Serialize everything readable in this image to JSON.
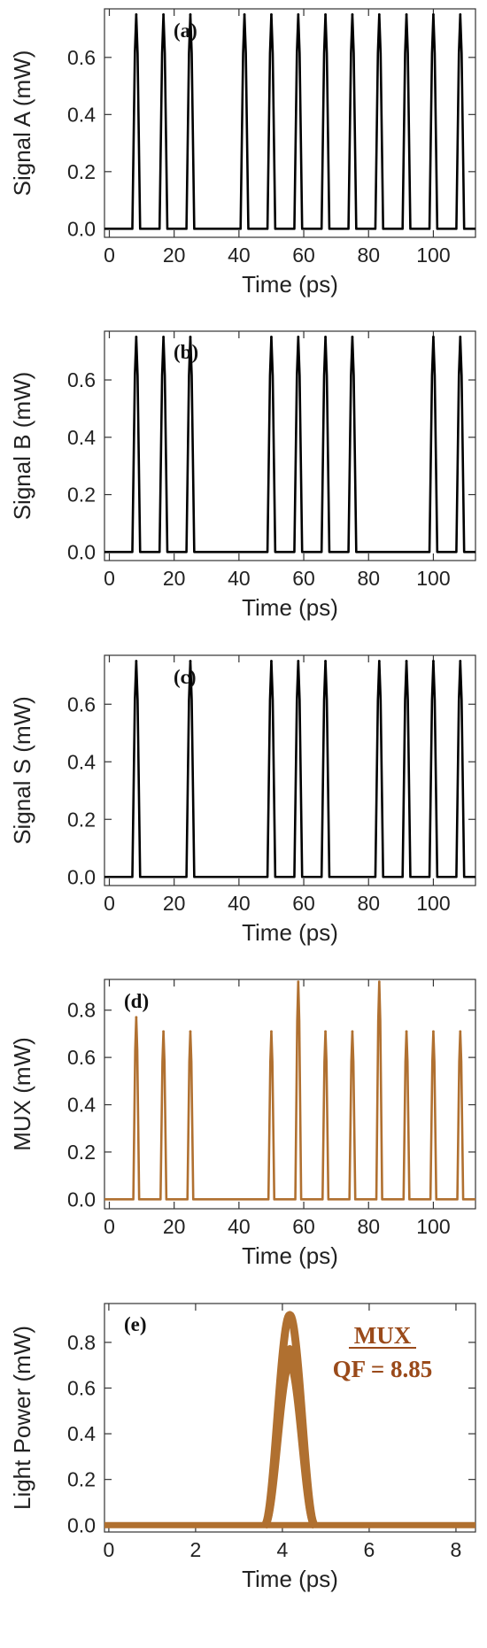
{
  "chart_data": [
    {
      "type": "line",
      "panel_label": "(a)",
      "xlabel": "Time (ps)",
      "ylabel": "Signal  A (mW)",
      "xlim": [
        -1.5,
        113
      ],
      "ylim": [
        -0.03,
        0.77
      ],
      "xticks": [
        0,
        20,
        40,
        60,
        80,
        100
      ],
      "yticks": [
        0.0,
        0.2,
        0.4,
        0.6
      ],
      "ytick_labels": [
        "0.0",
        "0.2",
        "0.4",
        "0.6"
      ],
      "color": "#000000",
      "pulse_halfwidth": 1.2,
      "peaks": [
        {
          "x": 8.3,
          "y": 0.75
        },
        {
          "x": 16.7,
          "y": 0.75
        },
        {
          "x": 25.0,
          "y": 0.75
        },
        {
          "x": 41.7,
          "y": 0.75
        },
        {
          "x": 50.0,
          "y": 0.75
        },
        {
          "x": 58.3,
          "y": 0.75
        },
        {
          "x": 66.7,
          "y": 0.75
        },
        {
          "x": 75.0,
          "y": 0.75
        },
        {
          "x": 83.3,
          "y": 0.75
        },
        {
          "x": 91.7,
          "y": 0.75
        },
        {
          "x": 100.0,
          "y": 0.75
        },
        {
          "x": 108.3,
          "y": 0.75
        }
      ]
    },
    {
      "type": "line",
      "panel_label": "(b)",
      "xlabel": "Time (ps)",
      "ylabel": "Signal  B (mW)",
      "xlim": [
        -1.5,
        113
      ],
      "ylim": [
        -0.03,
        0.77
      ],
      "xticks": [
        0,
        20,
        40,
        60,
        80,
        100
      ],
      "yticks": [
        0.0,
        0.2,
        0.4,
        0.6
      ],
      "ytick_labels": [
        "0.0",
        "0.2",
        "0.4",
        "0.6"
      ],
      "color": "#000000",
      "pulse_halfwidth": 1.2,
      "peaks": [
        {
          "x": 8.3,
          "y": 0.75
        },
        {
          "x": 16.7,
          "y": 0.75
        },
        {
          "x": 25.0,
          "y": 0.75
        },
        {
          "x": 50.0,
          "y": 0.75
        },
        {
          "x": 58.3,
          "y": 0.75
        },
        {
          "x": 66.7,
          "y": 0.75
        },
        {
          "x": 75.0,
          "y": 0.75
        },
        {
          "x": 100.0,
          "y": 0.75
        },
        {
          "x": 108.3,
          "y": 0.75
        }
      ]
    },
    {
      "type": "line",
      "panel_label": "(c)",
      "xlabel": "Time (ps)",
      "ylabel": "Signal  S (mW)",
      "xlim": [
        -1.5,
        113
      ],
      "ylim": [
        -0.03,
        0.77
      ],
      "xticks": [
        0,
        20,
        40,
        60,
        80,
        100
      ],
      "yticks": [
        0.0,
        0.2,
        0.4,
        0.6
      ],
      "ytick_labels": [
        "0.0",
        "0.2",
        "0.4",
        "0.6"
      ],
      "color": "#000000",
      "pulse_halfwidth": 1.2,
      "peaks": [
        {
          "x": 8.3,
          "y": 0.75
        },
        {
          "x": 25.0,
          "y": 0.75
        },
        {
          "x": 50.0,
          "y": 0.75
        },
        {
          "x": 58.3,
          "y": 0.75
        },
        {
          "x": 66.7,
          "y": 0.75
        },
        {
          "x": 83.3,
          "y": 0.75
        },
        {
          "x": 91.7,
          "y": 0.75
        },
        {
          "x": 100.0,
          "y": 0.75
        },
        {
          "x": 108.3,
          "y": 0.75
        }
      ]
    },
    {
      "type": "line",
      "panel_label": "(d)",
      "xlabel": "Time (ps)",
      "ylabel": "MUX (mW)",
      "xlim": [
        -1.5,
        113
      ],
      "ylim": [
        -0.04,
        0.93
      ],
      "xticks": [
        0,
        20,
        40,
        60,
        80,
        100
      ],
      "yticks": [
        0.0,
        0.2,
        0.4,
        0.6,
        0.8
      ],
      "ytick_labels": [
        "0.0",
        "0.2",
        "0.4",
        "0.6",
        "0.8"
      ],
      "color": "#b07030",
      "pulse_halfwidth": 0.9,
      "peaks": [
        {
          "x": 8.3,
          "y": 0.77
        },
        {
          "x": 16.7,
          "y": 0.71
        },
        {
          "x": 25.0,
          "y": 0.71
        },
        {
          "x": 50.0,
          "y": 0.71
        },
        {
          "x": 58.3,
          "y": 0.92
        },
        {
          "x": 66.7,
          "y": 0.71
        },
        {
          "x": 75.0,
          "y": 0.71
        },
        {
          "x": 83.3,
          "y": 0.92
        },
        {
          "x": 91.7,
          "y": 0.71
        },
        {
          "x": 100.0,
          "y": 0.71
        },
        {
          "x": 108.3,
          "y": 0.71
        }
      ]
    },
    {
      "type": "eye_diagram",
      "panel_label": "(e)",
      "xlabel": "Time (ps)",
      "ylabel": "Light Power (mW)",
      "xlim": [
        -0.1,
        8.45
      ],
      "ylim": [
        -0.03,
        0.97
      ],
      "xticks": [
        0,
        2,
        4,
        6,
        8
      ],
      "yticks": [
        0.0,
        0.2,
        0.4,
        0.6,
        0.8
      ],
      "ytick_labels": [
        "0.0",
        "0.2",
        "0.4",
        "0.6",
        "0.8"
      ],
      "color": "#b07030",
      "center": 4.17,
      "halfwidth": 0.58,
      "peak_levels": [
        0.71,
        0.77,
        0.92
      ],
      "annotation": {
        "title": "MUX",
        "qf": "QF = 8.85"
      }
    }
  ]
}
